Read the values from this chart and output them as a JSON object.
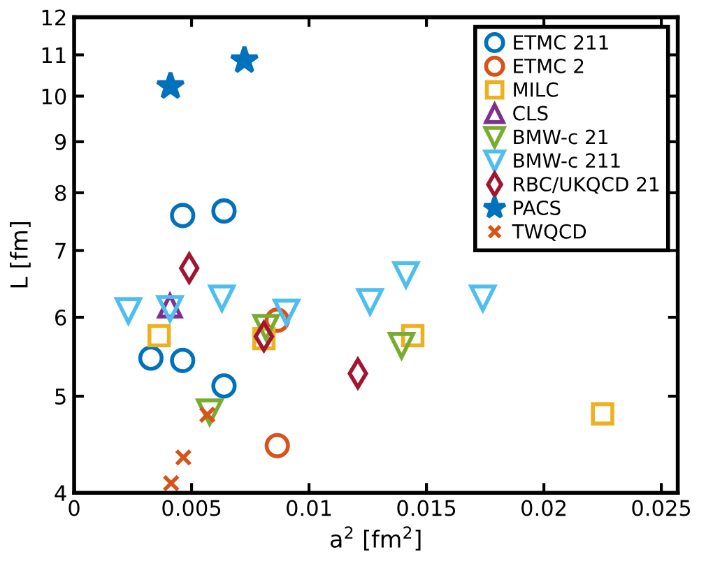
{
  "chart_data": {
    "type": "scatter",
    "xlabel": "a$^{2}$ [fm$^{2}$]",
    "ylabel": "L [fm]",
    "log": "y",
    "xlim": [
      0,
      0.0257
    ],
    "ylim": [
      4,
      12
    ],
    "xticks": [
      0,
      0.005,
      0.01,
      0.015,
      0.02,
      0.025
    ],
    "yticks": [
      4,
      5,
      6,
      7,
      8,
      9,
      10,
      11,
      12
    ],
    "grid": false,
    "legend": "top right",
    "series": [
      {
        "name": "ETMC 211",
        "color": "#0072bd",
        "marker": "circle",
        "x": [
          0.00327,
          0.00462,
          0.00462,
          0.00638,
          0.00638
        ],
        "values": [
          5.46,
          5.43,
          7.59,
          7.67,
          5.12
        ]
      },
      {
        "name": "ETMC 2",
        "color": "#d95319",
        "marker": "circle",
        "x": [
          0.00865,
          0.00865
        ],
        "values": [
          5.96,
          4.46
        ]
      },
      {
        "name": "MILC",
        "color": "#edb120",
        "marker": "square",
        "x": [
          0.00362,
          0.00808,
          0.01442,
          0.0225
        ],
        "values": [
          5.75,
          5.71,
          5.75,
          4.8
        ]
      },
      {
        "name": "CLS",
        "color": "#7e2f8e",
        "marker": "triangle",
        "x": [
          0.00408
        ],
        "values": [
          6.16
        ]
      },
      {
        "name": "BMW-c 21",
        "color": "#77ac30",
        "marker": "triangle_down",
        "x": [
          0.00577,
          0.00817,
          0.01394
        ],
        "values": [
          4.82,
          5.86,
          5.62
        ]
      },
      {
        "name": "BMW-c 211",
        "color": "#4dbeee",
        "marker": "triangle_down",
        "x": [
          0.00231,
          0.00408,
          0.00629,
          0.00904,
          0.0126,
          0.01413,
          0.0174
        ],
        "values": [
          6.09,
          6.12,
          6.27,
          6.07,
          6.22,
          6.62,
          6.27
        ]
      },
      {
        "name": "RBC/UKQCD 21",
        "color": "#a2142f",
        "marker": "diamond",
        "x": [
          0.0049,
          0.00808,
          0.01208
        ],
        "values": [
          6.72,
          5.74,
          5.27
        ]
      },
      {
        "name": "PACS",
        "color": "#0072bd",
        "marker": "star",
        "x": [
          0.0041,
          0.00725
        ],
        "values": [
          10.23,
          10.86
        ]
      },
      {
        "name": "TWQCD",
        "color": "#d95319",
        "marker": "cross",
        "x": [
          0.00413,
          0.00465,
          0.00567
        ],
        "values": [
          4.09,
          4.34,
          4.79
        ]
      }
    ]
  }
}
